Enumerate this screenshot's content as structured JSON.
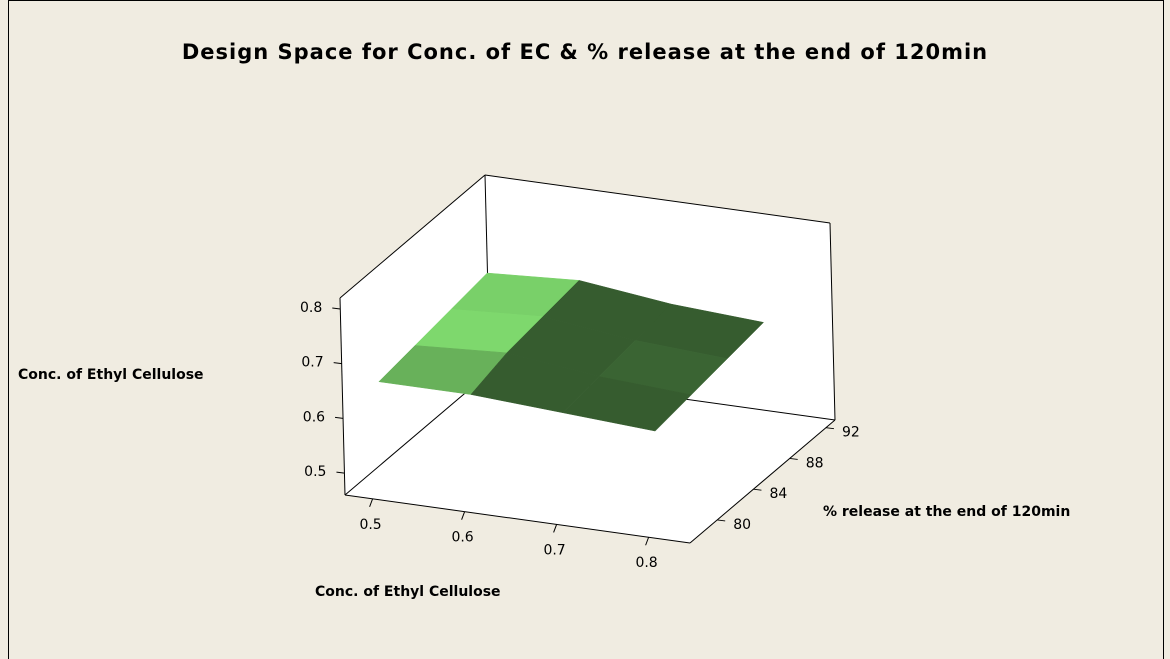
{
  "chart_data": {
    "type": "surface",
    "title": "Design Space for Conc. of EC & % release at the end of 120min",
    "xlabel": "Conc. of Ethyl Cellulose",
    "ylabel": "% release at the end of 120min",
    "zlabel": "Conc. of Ethyl Cellulose",
    "x": [
      0.5,
      0.6,
      0.7,
      0.8
    ],
    "y": [
      78,
      82,
      86,
      90
    ],
    "z": [
      [
        0.66,
        0.66,
        0.65,
        0.64
      ],
      [
        0.67,
        0.68,
        0.66,
        0.65
      ],
      [
        0.68,
        0.69,
        0.67,
        0.66
      ],
      [
        0.69,
        0.7,
        0.68,
        0.67
      ]
    ],
    "color": "#5a9a4e",
    "xlim": [
      0.47,
      0.845
    ],
    "ylim": [
      77,
      93
    ],
    "zlim": [
      0.46,
      0.82
    ],
    "xticks": [
      0.5,
      0.6,
      0.7,
      0.8
    ],
    "yticks": [
      80,
      84,
      88,
      92
    ],
    "zticks": [
      0.5,
      0.6,
      0.7,
      0.8
    ]
  }
}
